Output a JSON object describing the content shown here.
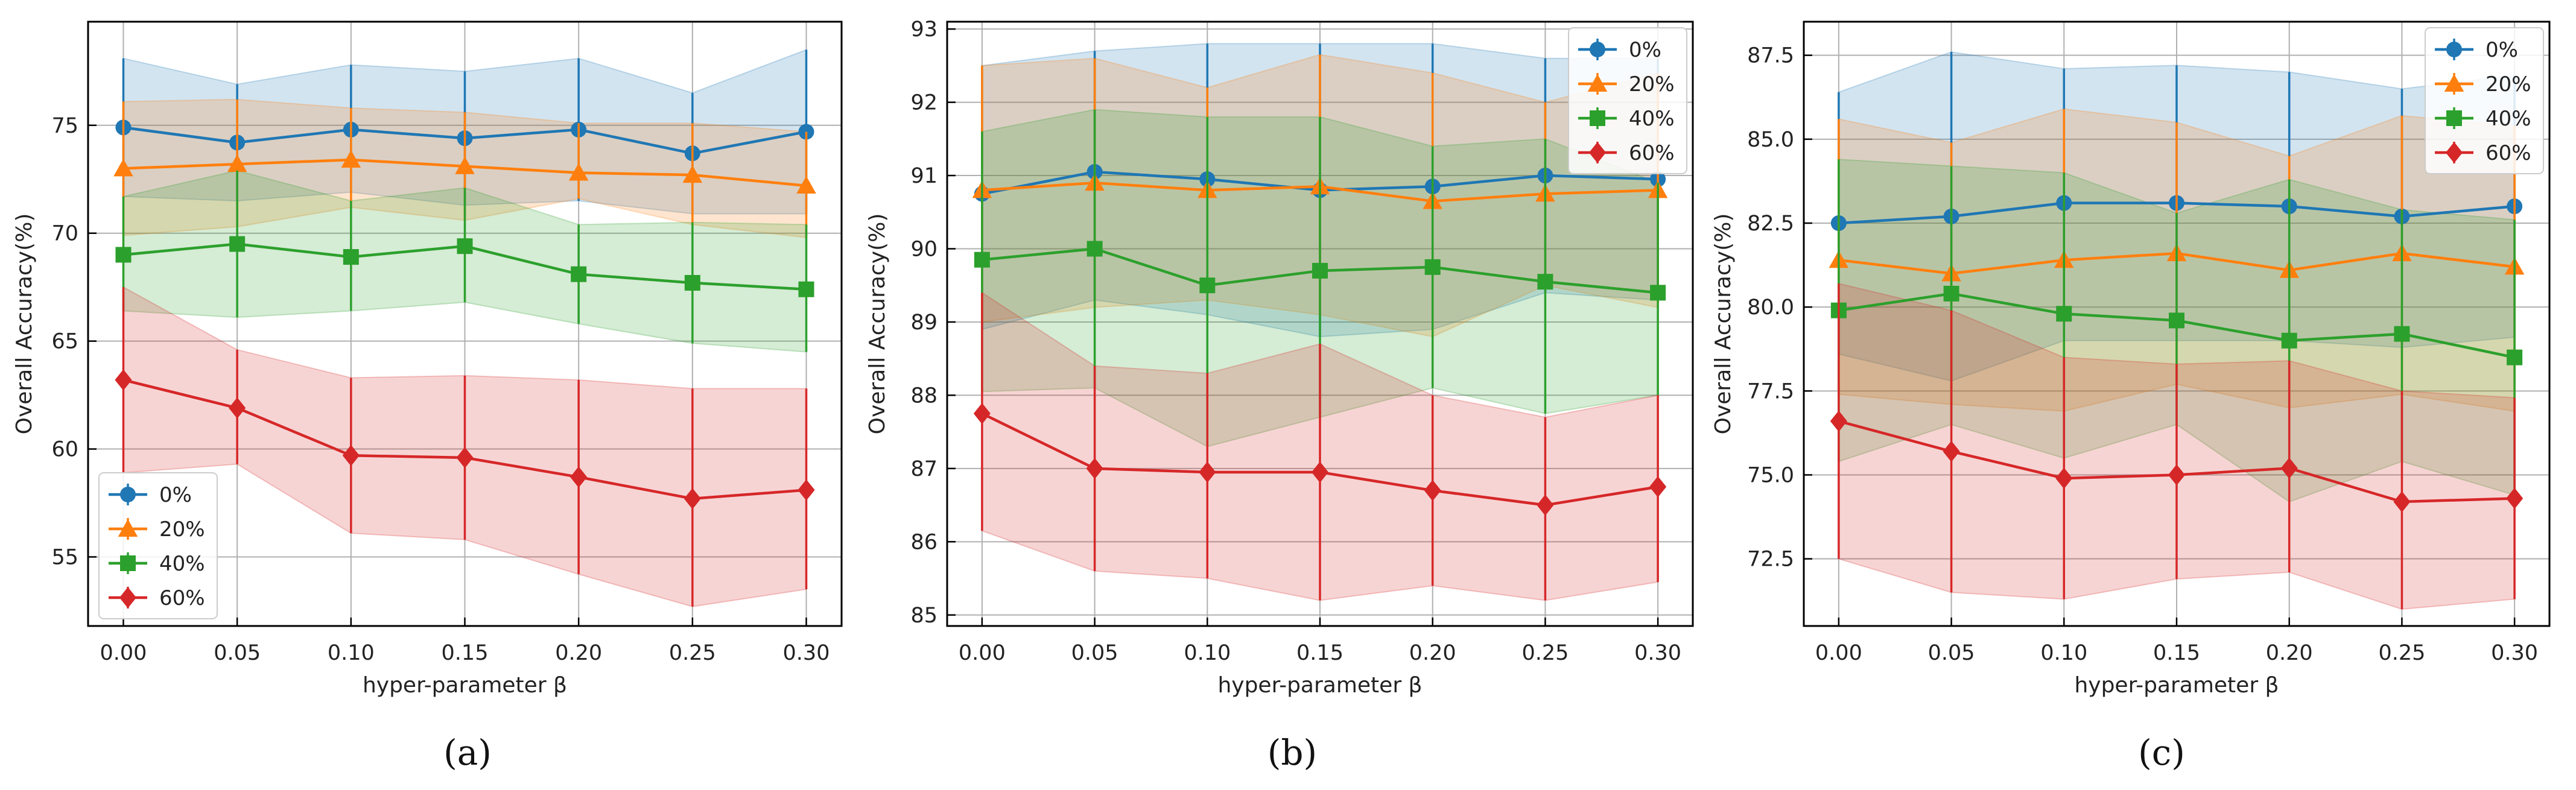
{
  "figure": {
    "captions": [
      "(a)",
      "(b)",
      "(c)"
    ]
  },
  "colors": {
    "series": [
      "#1f77b4",
      "#ff7f0e",
      "#2ca02c",
      "#d62728"
    ],
    "grid": "#b0b0b0",
    "axis": "#000000"
  },
  "chart_data": [
    {
      "type": "line",
      "panel": "(a)",
      "xlabel": "hyper-parameter β",
      "ylabel": "Overall Accuracy(%)",
      "x": [
        0.0,
        0.05,
        0.1,
        0.15,
        0.2,
        0.25,
        0.3
      ],
      "x_ticks": [
        "0.00",
        "0.05",
        "0.10",
        "0.15",
        "0.20",
        "0.25",
        "0.30"
      ],
      "xlim": [
        -0.0155,
        0.3155
      ],
      "ylim": [
        51.8,
        79.8
      ],
      "y_ticks": [
        55,
        60,
        65,
        70,
        75
      ],
      "y_tick_labels": [
        "55",
        "60",
        "65",
        "70",
        "75"
      ],
      "grid": true,
      "legend_position": "lower-left",
      "series": [
        {
          "name": "0%",
          "marker": "circle",
          "values": [
            74.9,
            74.2,
            74.8,
            74.4,
            74.8,
            73.7,
            74.7
          ],
          "lower": [
            71.7,
            71.5,
            71.9,
            71.3,
            71.5,
            70.9,
            70.9
          ],
          "upper": [
            78.1,
            76.9,
            77.8,
            77.5,
            78.1,
            76.5,
            78.5
          ]
        },
        {
          "name": "20%",
          "marker": "triangle",
          "values": [
            73.0,
            73.2,
            73.4,
            73.1,
            72.8,
            72.7,
            72.2
          ],
          "lower": [
            69.9,
            70.3,
            71.2,
            70.6,
            71.6,
            70.4,
            69.8
          ],
          "upper": [
            76.1,
            76.2,
            75.8,
            75.6,
            75.1,
            75.1,
            74.7
          ]
        },
        {
          "name": "40%",
          "marker": "square",
          "values": [
            69.0,
            69.5,
            68.9,
            69.4,
            68.1,
            67.7,
            67.4
          ],
          "lower": [
            66.4,
            66.1,
            66.4,
            66.8,
            65.8,
            64.9,
            64.5
          ],
          "upper": [
            71.7,
            72.9,
            71.5,
            72.1,
            70.4,
            70.5,
            70.4
          ]
        },
        {
          "name": "60%",
          "marker": "diamond",
          "values": [
            63.2,
            61.9,
            59.7,
            59.6,
            58.7,
            57.7,
            58.1
          ],
          "lower": [
            58.9,
            59.3,
            56.1,
            55.8,
            54.2,
            52.7,
            53.5
          ],
          "upper": [
            67.5,
            64.6,
            63.3,
            63.4,
            63.2,
            62.8,
            62.8
          ]
        }
      ]
    },
    {
      "type": "line",
      "panel": "(b)",
      "xlabel": "hyper-parameter β",
      "ylabel": "Overall Accuracy(%)",
      "x": [
        0.0,
        0.05,
        0.1,
        0.15,
        0.2,
        0.25,
        0.3
      ],
      "x_ticks": [
        "0.00",
        "0.05",
        "0.10",
        "0.15",
        "0.20",
        "0.25",
        "0.30"
      ],
      "xlim": [
        -0.0155,
        0.3155
      ],
      "ylim": [
        84.85,
        93.1
      ],
      "y_ticks": [
        85,
        86,
        87,
        88,
        89,
        90,
        91,
        92,
        93
      ],
      "y_tick_labels": [
        "85",
        "86",
        "87",
        "88",
        "89",
        "90",
        "91",
        "92",
        "93"
      ],
      "grid": true,
      "legend_position": "upper-right",
      "series": [
        {
          "name": "0%",
          "marker": "circle",
          "values": [
            90.75,
            91.05,
            90.95,
            90.8,
            90.85,
            91.0,
            90.95
          ],
          "lower": [
            88.9,
            89.3,
            89.1,
            88.8,
            88.9,
            89.4,
            89.3
          ],
          "upper": [
            92.5,
            92.7,
            92.8,
            92.8,
            92.8,
            92.6,
            92.6
          ]
        },
        {
          "name": "20%",
          "marker": "triangle",
          "values": [
            90.8,
            90.9,
            90.8,
            90.85,
            90.65,
            90.75,
            90.8
          ],
          "lower": [
            89.0,
            89.2,
            89.3,
            89.1,
            88.8,
            89.5,
            89.2
          ],
          "upper": [
            92.5,
            92.6,
            92.2,
            92.65,
            92.4,
            92.0,
            92.4
          ]
        },
        {
          "name": "40%",
          "marker": "square",
          "values": [
            89.85,
            90.0,
            89.5,
            89.7,
            89.75,
            89.55,
            89.4
          ],
          "lower": [
            88.05,
            88.1,
            87.3,
            87.7,
            88.1,
            87.75,
            88.0
          ],
          "upper": [
            91.6,
            91.9,
            91.8,
            91.8,
            91.4,
            91.5,
            90.9
          ]
        },
        {
          "name": "60%",
          "marker": "diamond",
          "values": [
            87.75,
            87.0,
            86.95,
            86.95,
            86.7,
            86.5,
            86.75
          ],
          "lower": [
            86.15,
            85.6,
            85.5,
            85.2,
            85.4,
            85.2,
            85.45
          ],
          "upper": [
            89.4,
            88.4,
            88.3,
            88.7,
            88.0,
            87.7,
            88.0
          ]
        }
      ]
    },
    {
      "type": "line",
      "panel": "(c)",
      "xlabel": "hyper-parameter β",
      "ylabel": "Overall Accuracy(%)",
      "x": [
        0.0,
        0.05,
        0.1,
        0.15,
        0.2,
        0.25,
        0.3
      ],
      "x_ticks": [
        "0.00",
        "0.05",
        "0.10",
        "0.15",
        "0.20",
        "0.25",
        "0.30"
      ],
      "xlim": [
        -0.0155,
        0.3155
      ],
      "ylim": [
        70.5,
        88.5
      ],
      "y_ticks": [
        72.5,
        75.0,
        77.5,
        80.0,
        82.5,
        85.0,
        87.5
      ],
      "y_tick_labels": [
        "72.5",
        "75.0",
        "77.5",
        "80.0",
        "82.5",
        "85.0",
        "87.5"
      ],
      "grid": true,
      "legend_position": "upper-right",
      "series": [
        {
          "name": "0%",
          "marker": "circle",
          "values": [
            82.5,
            82.7,
            83.1,
            83.1,
            83.0,
            82.7,
            83.0
          ],
          "lower": [
            78.6,
            77.8,
            79.0,
            79.0,
            79.0,
            78.8,
            79.1
          ],
          "upper": [
            86.4,
            87.6,
            87.1,
            87.2,
            87.0,
            86.5,
            86.9
          ]
        },
        {
          "name": "20%",
          "marker": "triangle",
          "values": [
            81.4,
            81.0,
            81.4,
            81.6,
            81.1,
            81.6,
            81.2
          ],
          "lower": [
            77.4,
            77.1,
            76.9,
            77.7,
            77.0,
            77.4,
            76.9
          ],
          "upper": [
            85.6,
            84.9,
            85.9,
            85.5,
            84.5,
            85.7,
            85.4
          ]
        },
        {
          "name": "40%",
          "marker": "square",
          "values": [
            79.9,
            80.4,
            79.8,
            79.6,
            79.0,
            79.2,
            78.5
          ],
          "lower": [
            75.4,
            76.5,
            75.5,
            76.5,
            74.2,
            75.4,
            74.4
          ],
          "upper": [
            84.4,
            84.2,
            84.0,
            82.8,
            83.8,
            82.9,
            82.6
          ]
        },
        {
          "name": "60%",
          "marker": "diamond",
          "values": [
            76.6,
            75.7,
            74.9,
            75.0,
            75.2,
            74.2,
            74.3
          ],
          "lower": [
            72.5,
            71.5,
            71.3,
            71.9,
            72.1,
            71.0,
            71.3
          ],
          "upper": [
            80.7,
            79.9,
            78.5,
            78.3,
            78.4,
            77.5,
            77.3
          ]
        }
      ]
    }
  ]
}
